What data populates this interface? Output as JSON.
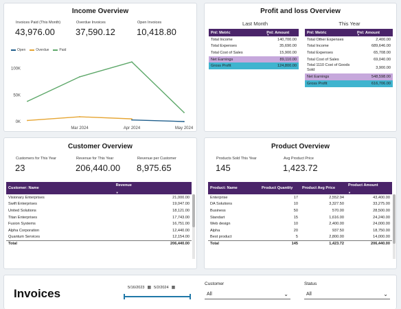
{
  "income": {
    "title": "Income Overview",
    "kpis": [
      {
        "label": "Invoices Paid (This Month)",
        "value": "43,976.00"
      },
      {
        "label": "Overdue Invoices",
        "value": "37,590.12"
      },
      {
        "label": "Open Invoices",
        "value": "10,418.80"
      }
    ],
    "legend": [
      {
        "name": "Open",
        "color": "#1f5e8c"
      },
      {
        "name": "Overdue",
        "color": "#e6a532"
      },
      {
        "name": "Paid",
        "color": "#5ea86a"
      }
    ],
    "chart_data": {
      "type": "line",
      "x": [
        "Feb 2024",
        "Mar 2024",
        "Apr 2024",
        "May 2024"
      ],
      "x_tick_labels": [
        "Mar 2024",
        "Apr 2024",
        "May 2024"
      ],
      "y_tick_labels": [
        "0K",
        "50K",
        "100K"
      ],
      "ylim": [
        0,
        120000
      ],
      "series": [
        {
          "name": "Open",
          "x": [
            "Apr 2024",
            "May 2024"
          ],
          "values": [
            3000,
            0
          ],
          "color": "#1f5e8c"
        },
        {
          "name": "Overdue",
          "x": [
            "Feb 2024",
            "Mar 2024",
            "Apr 2024"
          ],
          "values": [
            2000,
            9000,
            5000
          ],
          "color": "#e6a532"
        },
        {
          "name": "Paid",
          "x": [
            "Feb 2024",
            "Mar 2024",
            "Apr 2024",
            "May 2024"
          ],
          "values": [
            38000,
            84000,
            112000,
            17000
          ],
          "color": "#5ea86a"
        }
      ]
    }
  },
  "pnl": {
    "title": "Profit and loss Overview",
    "last_month": {
      "heading": "Last Month",
      "columns": [
        "Pnl: Metric",
        "Pnl: Amount"
      ],
      "rows": [
        {
          "metric": "Total Income",
          "amount": "140,700.00",
          "hl": ""
        },
        {
          "metric": "Total Expenses",
          "amount": "35,690.00",
          "hl": ""
        },
        {
          "metric": "Total Cost of Sales",
          "amount": "15,900.00",
          "hl": ""
        },
        {
          "metric": "Net Earnings",
          "amount": "89,110.00",
          "hl": "purple"
        },
        {
          "metric": "Gross Profit",
          "amount": "124,800.00",
          "hl": "teal"
        }
      ]
    },
    "this_year": {
      "heading": "This Year",
      "columns": [
        "Pnl: Metric",
        "Pnl: Amount"
      ],
      "rows": [
        {
          "metric": "Total Other Expenses",
          "amount": "2,400.00",
          "hl": ""
        },
        {
          "metric": "Total Income",
          "amount": "689,646.00",
          "hl": ""
        },
        {
          "metric": "Total Expenses",
          "amount": "65,708.00",
          "hl": ""
        },
        {
          "metric": "Total Cost of Sales",
          "amount": "69,040.00",
          "hl": ""
        },
        {
          "metric": "Total 1110 Cost of Goods Sold",
          "amount": "3,900.00",
          "hl": ""
        },
        {
          "metric": "Net Earnings",
          "amount": "548,598.00",
          "hl": "purple"
        },
        {
          "metric": "Gross Profit",
          "amount": "616,706.00",
          "hl": "teal"
        }
      ]
    }
  },
  "customer": {
    "title": "Customer Overview",
    "kpis": [
      {
        "label": "Customers for This Year",
        "value": "23"
      },
      {
        "label": "Revenue for This Year",
        "value": "206,440.00"
      },
      {
        "label": "Revenue per Customer",
        "value": "8,975.65"
      }
    ],
    "columns": [
      "Customer: Name",
      "Revenue"
    ],
    "rows": [
      {
        "name": "Visionary Enterprises",
        "revenue": "21,000.00"
      },
      {
        "name": "Swift Enterprises",
        "revenue": "19,047.00"
      },
      {
        "name": "United Solutions",
        "revenue": "18,121.00"
      },
      {
        "name": "Titan Enterprises",
        "revenue": "17,743.00"
      },
      {
        "name": "Fusion Systems",
        "revenue": "16,751.00"
      },
      {
        "name": "Alpha Corporation",
        "revenue": "12,440.00"
      },
      {
        "name": "Quantum Services",
        "revenue": "12,154.00"
      }
    ],
    "total": {
      "label": "Total",
      "revenue": "206,440.00"
    }
  },
  "product": {
    "title": "Product Overview",
    "kpis": [
      {
        "label": "Products Sold This Year",
        "value": "145"
      },
      {
        "label": "Avg Product Price",
        "value": "1,423.72"
      }
    ],
    "columns": [
      "Product: Name",
      "Product Quantity",
      "Product Avg Price",
      "Product Amount"
    ],
    "rows": [
      {
        "name": "Enterprise",
        "qty": "17",
        "avg": "2,552.94",
        "amount": "43,400.00"
      },
      {
        "name": "DA Solutions",
        "qty": "10",
        "avg": "3,327.50",
        "amount": "33,275.00"
      },
      {
        "name": "Business",
        "qty": "50",
        "avg": "570.00",
        "amount": "28,500.00"
      },
      {
        "name": "Standart",
        "qty": "15",
        "avg": "1,616.00",
        "amount": "24,240.00"
      },
      {
        "name": "Web design",
        "qty": "10",
        "avg": "2,400.00",
        "amount": "24,000.00"
      },
      {
        "name": "Alpha",
        "qty": "20",
        "avg": "937.50",
        "amount": "18,750.00"
      },
      {
        "name": "Best product",
        "qty": "5",
        "avg": "2,800.00",
        "amount": "14,000.00"
      }
    ],
    "total": {
      "label": "Total",
      "qty": "145",
      "avg": "1,423.72",
      "amount": "206,440.00"
    }
  },
  "invoices": {
    "title": "Invoices",
    "date_start": "5/16/2023",
    "date_end": "5/2/2024",
    "customer_label": "Customer",
    "customer_value": "All",
    "status_label": "Status",
    "status_value": "All"
  }
}
